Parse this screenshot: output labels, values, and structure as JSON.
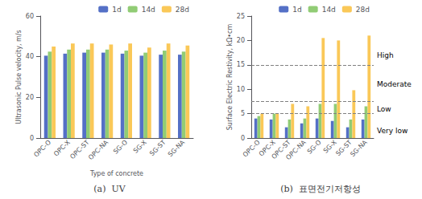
{
  "chart_data": [
    {
      "type": "bar",
      "title": "(a)  UV",
      "xlabel": "Type of concrete",
      "ylabel": "Ultrasonic Pulse velocity, m/s",
      "categories": [
        "OPC-O",
        "OPC-X",
        "OPC-ST",
        "OPC-NA",
        "SG-O",
        "SG-X",
        "SG-ST",
        "SG-NA"
      ],
      "series": [
        {
          "name": "1d",
          "color": "#5470c6",
          "values": [
            40.5,
            41.5,
            42.0,
            42.0,
            41.5,
            40.5,
            41.0,
            41.0
          ]
        },
        {
          "name": "14d",
          "color": "#91cc75",
          "values": [
            42.5,
            43.5,
            43.5,
            43.5,
            43.0,
            42.0,
            43.0,
            42.5
          ]
        },
        {
          "name": "28d",
          "color": "#fac858",
          "values": [
            45.0,
            46.5,
            46.5,
            46.0,
            46.5,
            44.5,
            46.5,
            45.5
          ]
        }
      ],
      "ylim": [
        0,
        60
      ],
      "yticks": [
        0,
        20,
        40,
        60
      ],
      "grid": false,
      "legend": "upper right"
    },
    {
      "type": "bar",
      "title": "(b)  표면전기저항성",
      "ylabel": "Surface Electric Restivity, kΩ•cm",
      "categories": [
        "OPC-O",
        "OPC-X",
        "OPC-ST",
        "OPC-NA",
        "SG-O",
        "SG-X",
        "SG-ST",
        "SG-NA"
      ],
      "series": [
        {
          "name": "1d",
          "color": "#5470c6",
          "values": [
            4.0,
            3.8,
            2.2,
            3.0,
            4.0,
            3.5,
            2.2,
            3.8
          ]
        },
        {
          "name": "14d",
          "color": "#91cc75",
          "values": [
            4.5,
            5.0,
            3.8,
            4.0,
            7.0,
            7.0,
            3.8,
            6.5
          ]
        },
        {
          "name": "28d",
          "color": "#fac858",
          "values": [
            5.0,
            5.0,
            7.0,
            6.5,
            20.5,
            20.0,
            9.8,
            21.0
          ]
        }
      ],
      "ylim": [
        0,
        25
      ],
      "yticks": [
        0,
        5,
        10,
        15,
        20,
        25
      ],
      "hlines": [
        5.0,
        7.5,
        15.0
      ],
      "annotations": [
        {
          "text": "Very low",
          "y": 1.5
        },
        {
          "text": "Low",
          "y": 6.0
        },
        {
          "text": "Moderate",
          "y": 11.0
        },
        {
          "text": "High",
          "y": 17.0
        }
      ],
      "grid": false,
      "legend": "upper right"
    }
  ]
}
